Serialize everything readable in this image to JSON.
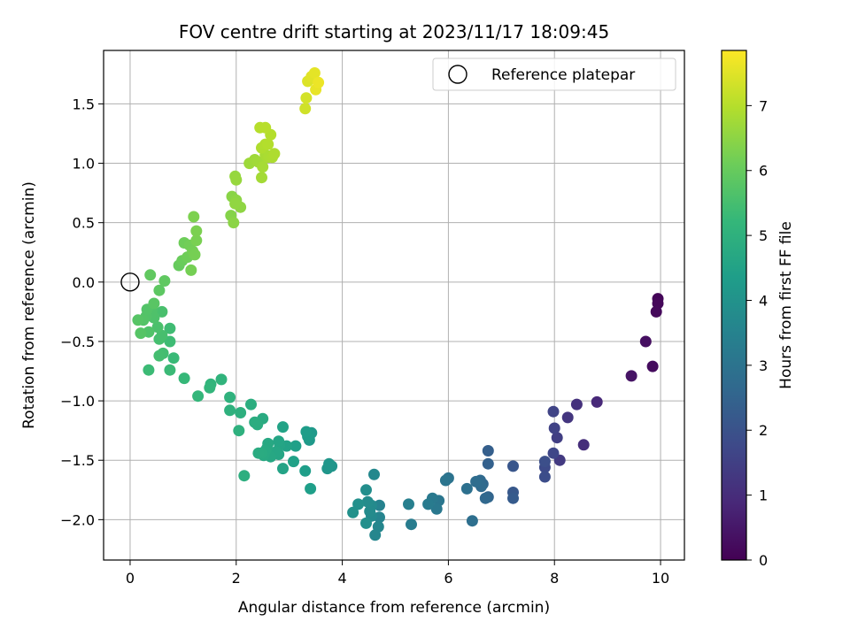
{
  "chart_data": {
    "type": "scatter",
    "title": "FOV centre drift starting at 2023/11/17 18:09:45",
    "xlabel": "Angular distance from reference (arcmin)",
    "ylabel": "Rotation from reference (arcmin)",
    "xlim": [
      -0.5,
      10.45
    ],
    "ylim": [
      -2.34,
      1.95
    ],
    "xticks": [
      0,
      2,
      4,
      6,
      8,
      10
    ],
    "xtick_labels": [
      "0",
      "2",
      "4",
      "6",
      "8",
      "10"
    ],
    "yticks": [
      -2.0,
      -1.5,
      -1.0,
      -0.5,
      0.0,
      0.5,
      1.0,
      1.5
    ],
    "ytick_labels": [
      "−2.0",
      "−1.5",
      "−1.0",
      "−0.5",
      "0.0",
      "0.5",
      "1.0",
      "1.5"
    ],
    "grid": true,
    "legend": {
      "placement": "top-right",
      "entries": [
        "Reference platepar"
      ]
    },
    "reference_point": {
      "label": "Reference platepar",
      "x": 0,
      "y": 0
    },
    "colorbar": {
      "label": "Hours from first FF file",
      "range": [
        0,
        7.85
      ],
      "ticks": [
        0,
        1,
        2,
        3,
        4,
        5,
        6,
        7
      ],
      "tick_labels": [
        "0",
        "1",
        "2",
        "3",
        "4",
        "5",
        "6",
        "7"
      ],
      "colormap": "viridis"
    },
    "series": [
      {
        "points": [
          [
            9.95,
            -0.14,
            0.1
          ],
          [
            9.95,
            -0.18,
            0.14
          ],
          [
            9.92,
            -0.25,
            0.18
          ],
          [
            9.85,
            -0.71,
            0.25
          ],
          [
            9.72,
            -0.5,
            0.32
          ],
          [
            9.45,
            -0.79,
            0.42
          ],
          [
            8.8,
            -1.01,
            0.9
          ],
          [
            8.55,
            -1.37,
            1.02
          ],
          [
            8.42,
            -1.03,
            1.1
          ],
          [
            8.25,
            -1.14,
            1.25
          ],
          [
            8.1,
            -1.5,
            1.35
          ],
          [
            8.05,
            -1.31,
            1.45
          ],
          [
            8.0,
            -1.23,
            1.55
          ],
          [
            7.98,
            -1.09,
            1.6
          ],
          [
            7.98,
            -1.44,
            1.68
          ],
          [
            7.82,
            -1.56,
            1.78
          ],
          [
            7.82,
            -1.64,
            1.85
          ],
          [
            7.82,
            -1.51,
            1.9
          ],
          [
            7.22,
            -1.55,
            2.1
          ],
          [
            7.22,
            -1.77,
            2.18
          ],
          [
            7.22,
            -1.82,
            2.25
          ],
          [
            6.75,
            -1.42,
            2.35
          ],
          [
            6.75,
            -1.53,
            2.42
          ],
          [
            6.75,
            -1.81,
            2.52
          ],
          [
            6.65,
            -1.7,
            2.6
          ],
          [
            6.7,
            -1.82,
            2.65
          ],
          [
            6.6,
            -1.67,
            2.7
          ],
          [
            6.62,
            -1.72,
            2.72
          ],
          [
            6.52,
            -1.68,
            2.78
          ],
          [
            6.45,
            -2.01,
            2.85
          ],
          [
            6.35,
            -1.74,
            2.9
          ],
          [
            6.0,
            -1.65,
            3.0
          ],
          [
            5.95,
            -1.67,
            3.05
          ],
          [
            5.82,
            -1.84,
            3.1
          ],
          [
            5.78,
            -1.91,
            3.15
          ],
          [
            5.7,
            -1.82,
            3.2
          ],
          [
            5.62,
            -1.87,
            3.25
          ],
          [
            5.3,
            -2.04,
            3.3
          ],
          [
            5.25,
            -1.87,
            3.38
          ],
          [
            4.7,
            -1.88,
            3.5
          ],
          [
            4.7,
            -1.98,
            3.55
          ],
          [
            4.68,
            -2.06,
            3.6
          ],
          [
            4.62,
            -2.13,
            3.62
          ],
          [
            4.6,
            -1.62,
            3.68
          ],
          [
            4.55,
            -1.97,
            3.7
          ],
          [
            4.55,
            -1.88,
            3.75
          ],
          [
            4.52,
            -1.93,
            3.78
          ],
          [
            4.48,
            -1.85,
            3.8
          ],
          [
            4.45,
            -1.75,
            3.85
          ],
          [
            4.45,
            -2.03,
            3.88
          ],
          [
            4.3,
            -1.87,
            3.92
          ],
          [
            4.2,
            -1.94,
            3.95
          ],
          [
            3.8,
            -1.55,
            4.05
          ],
          [
            3.75,
            -1.53,
            4.1
          ],
          [
            3.72,
            -1.57,
            4.12
          ],
          [
            3.42,
            -1.27,
            4.2
          ],
          [
            3.38,
            -1.33,
            4.22
          ],
          [
            3.38,
            -1.29,
            4.25
          ],
          [
            3.35,
            -1.3,
            4.3
          ],
          [
            3.32,
            -1.26,
            4.32
          ],
          [
            3.3,
            -1.59,
            4.35
          ],
          [
            3.4,
            -1.74,
            4.38
          ],
          [
            3.12,
            -1.38,
            4.42
          ],
          [
            3.08,
            -1.51,
            4.45
          ],
          [
            2.95,
            -1.38,
            4.5
          ],
          [
            2.88,
            -1.22,
            4.52
          ],
          [
            2.88,
            -1.57,
            4.55
          ],
          [
            2.82,
            -1.37,
            4.58
          ],
          [
            2.8,
            -1.34,
            4.6
          ],
          [
            2.8,
            -1.45,
            4.62
          ],
          [
            2.75,
            -1.43,
            4.65
          ],
          [
            2.65,
            -1.47,
            4.68
          ],
          [
            2.6,
            -1.36,
            4.7
          ],
          [
            2.58,
            -1.4,
            4.72
          ],
          [
            2.55,
            -1.42,
            4.74
          ],
          [
            2.52,
            -1.46,
            4.76
          ],
          [
            2.5,
            -1.15,
            4.78
          ],
          [
            2.48,
            -1.44,
            4.8
          ],
          [
            2.42,
            -1.44,
            4.82
          ],
          [
            2.4,
            -1.2,
            4.84
          ],
          [
            2.35,
            -1.18,
            4.86
          ],
          [
            2.28,
            -1.03,
            4.88
          ],
          [
            2.15,
            -1.63,
            4.92
          ],
          [
            2.08,
            -1.1,
            4.95
          ],
          [
            2.05,
            -1.25,
            4.98
          ],
          [
            1.88,
            -1.08,
            5.0
          ],
          [
            1.88,
            -0.97,
            5.02
          ],
          [
            1.72,
            -0.82,
            5.08
          ],
          [
            1.52,
            -0.86,
            5.12
          ],
          [
            1.5,
            -0.89,
            5.15
          ],
          [
            1.28,
            -0.96,
            5.2
          ],
          [
            1.02,
            -0.81,
            5.25
          ],
          [
            0.82,
            -0.64,
            5.3
          ],
          [
            0.75,
            -0.74,
            5.32
          ],
          [
            0.35,
            -0.74,
            5.35
          ],
          [
            0.75,
            -0.5,
            5.38
          ],
          [
            0.75,
            -0.39,
            5.4
          ],
          [
            0.62,
            -0.6,
            5.45
          ],
          [
            0.55,
            -0.62,
            5.48
          ],
          [
            0.55,
            -0.48,
            5.5
          ],
          [
            0.6,
            -0.45,
            5.52
          ],
          [
            0.6,
            -0.25,
            5.55
          ],
          [
            0.52,
            -0.38,
            5.58
          ],
          [
            0.42,
            -0.24,
            5.6
          ],
          [
            0.45,
            -0.3,
            5.62
          ],
          [
            0.4,
            -0.26,
            5.64
          ],
          [
            0.35,
            -0.42,
            5.66
          ],
          [
            0.3,
            -0.29,
            5.68
          ],
          [
            0.32,
            -0.23,
            5.7
          ],
          [
            0.25,
            -0.32,
            5.72
          ],
          [
            0.2,
            -0.43,
            5.74
          ],
          [
            0.15,
            -0.32,
            5.76
          ],
          [
            0.45,
            -0.18,
            5.8
          ],
          [
            0.55,
            -0.07,
            5.85
          ],
          [
            0.65,
            0.01,
            5.9
          ],
          [
            0.38,
            0.06,
            5.92
          ],
          [
            0.92,
            0.14,
            6.0
          ],
          [
            0.98,
            0.18,
            6.05
          ],
          [
            1.02,
            0.33,
            6.1
          ],
          [
            1.08,
            0.21,
            6.12
          ],
          [
            1.12,
            0.31,
            6.15
          ],
          [
            1.18,
            0.26,
            6.18
          ],
          [
            1.15,
            0.1,
            6.2
          ],
          [
            1.22,
            0.23,
            6.22
          ],
          [
            1.25,
            0.35,
            6.25
          ],
          [
            1.25,
            0.43,
            6.28
          ],
          [
            1.2,
            0.55,
            6.3
          ],
          [
            1.9,
            0.56,
            6.4
          ],
          [
            1.92,
            0.72,
            6.45
          ],
          [
            1.95,
            0.5,
            6.48
          ],
          [
            2.0,
            0.69,
            6.5
          ],
          [
            2.08,
            0.63,
            6.52
          ],
          [
            1.98,
            0.66,
            6.55
          ],
          [
            1.98,
            0.89,
            6.6
          ],
          [
            2.0,
            0.86,
            6.62
          ],
          [
            2.25,
            1.0,
            6.7
          ],
          [
            2.35,
            1.03,
            6.72
          ],
          [
            2.42,
            1.01,
            6.75
          ],
          [
            2.48,
            0.88,
            6.78
          ],
          [
            2.5,
            0.97,
            6.8
          ],
          [
            2.55,
            1.07,
            6.82
          ],
          [
            2.6,
            1.05,
            6.84
          ],
          [
            2.62,
            1.06,
            6.86
          ],
          [
            2.68,
            1.05,
            6.88
          ],
          [
            2.72,
            1.08,
            6.9
          ],
          [
            2.48,
            1.13,
            6.92
          ],
          [
            2.55,
            1.16,
            6.94
          ],
          [
            2.6,
            1.16,
            6.96
          ],
          [
            2.65,
            1.24,
            6.98
          ],
          [
            2.45,
            1.3,
            7.0
          ],
          [
            2.55,
            1.3,
            7.02
          ],
          [
            3.3,
            1.46,
            7.3
          ],
          [
            3.32,
            1.55,
            7.35
          ],
          [
            3.35,
            1.69,
            7.45
          ],
          [
            3.42,
            1.73,
            7.5
          ],
          [
            3.48,
            1.76,
            7.55
          ],
          [
            3.5,
            1.62,
            7.6
          ],
          [
            3.55,
            1.68,
            7.65
          ]
        ]
      }
    ]
  }
}
